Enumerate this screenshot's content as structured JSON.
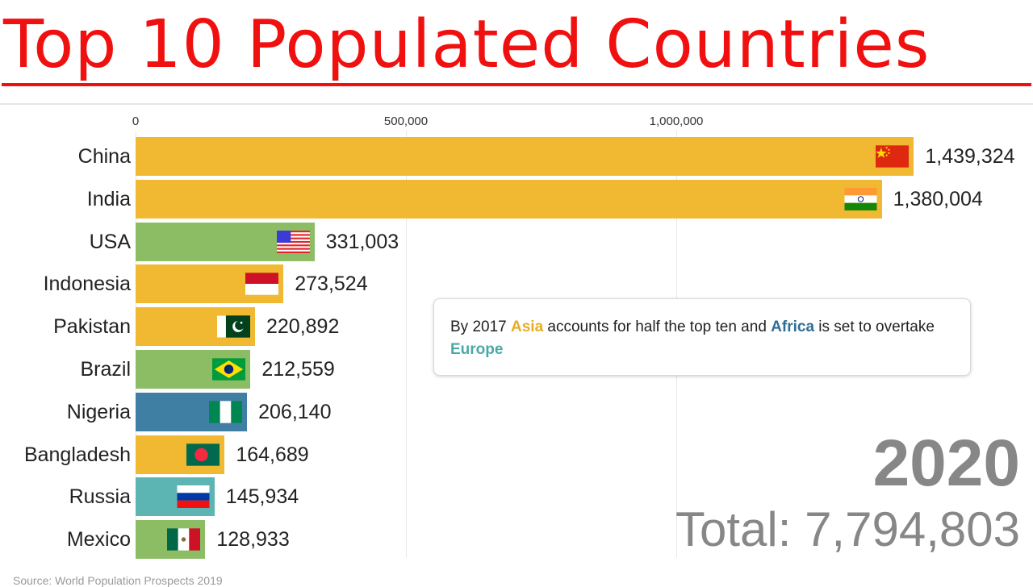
{
  "title": "Top 10 Populated Countries",
  "axis": {
    "ticks": [
      {
        "label": "0",
        "value": 0
      },
      {
        "label": "500,000",
        "value": 500000
      },
      {
        "label": "1,000,000",
        "value": 1000000
      }
    ]
  },
  "colors": {
    "asia": "#f0b931",
    "americas": "#8cbd65",
    "africa": "#3f7fa3",
    "europe": "#5cb5b3",
    "title": "#f01010",
    "year": "#878787"
  },
  "note": {
    "prefix": "By 2017 ",
    "asia": "Asia",
    "mid": " accounts for half the top ten and ",
    "africa": "Africa",
    "mid2": " is set to overtake ",
    "europe": "Europe"
  },
  "year": "2020",
  "total": "Total: 7,794,803",
  "source": "Source: World Population Prospects 2019",
  "chart_data": {
    "type": "bar",
    "orientation": "horizontal",
    "title": "Top 10 Populated Countries",
    "subtitle": "2020",
    "xlabel": "",
    "ylabel": "",
    "unit": "thousands",
    "xlim": [
      0,
      1500000
    ],
    "x_ticks": [
      "0",
      "500,000",
      "1,000,000"
    ],
    "grid": true,
    "categories": [
      "China",
      "India",
      "USA",
      "Indonesia",
      "Pakistan",
      "Brazil",
      "Nigeria",
      "Bangladesh",
      "Russia",
      "Mexico"
    ],
    "values": [
      1439324,
      1380004,
      331003,
      273524,
      220892,
      212559,
      206140,
      164689,
      145934,
      128933
    ],
    "labels": [
      "1,439,324",
      "1,380,004",
      "331,003",
      "273,524",
      "220,892",
      "212,559",
      "206,140",
      "164,689",
      "145,934",
      "128,933"
    ],
    "regions": [
      "Asia",
      "Asia",
      "Americas",
      "Asia",
      "Asia",
      "Americas",
      "Africa",
      "Asia",
      "Europe",
      "Americas"
    ],
    "total": 7794803,
    "annotation": "By 2017 Asia accounts for half the top ten and Africa is set to overtake Europe"
  }
}
